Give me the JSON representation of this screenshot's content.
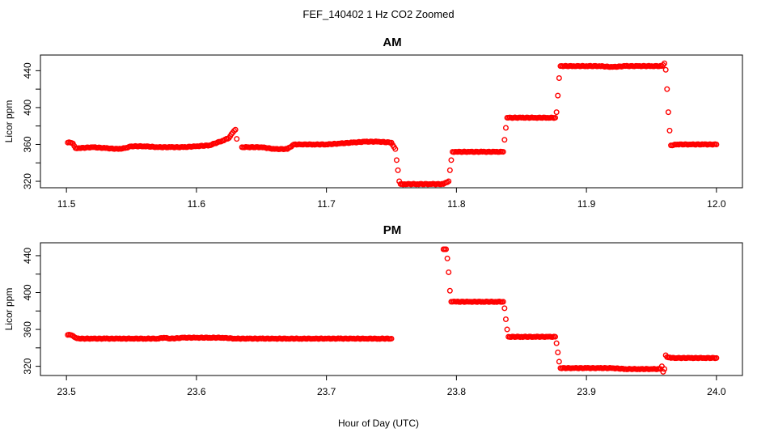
{
  "figure": {
    "title": "FEF_140402  1 Hz CO2 Zoomed",
    "xlabel": "Hour of Day (UTC)"
  },
  "colors": {
    "points": "#ff0000",
    "axes": "#000000",
    "background": "#ffffff"
  },
  "chart_data": [
    {
      "type": "scatter",
      "title": "AM",
      "xlabel": "Hour of Day (UTC)",
      "ylabel": "Licor ppm",
      "xlim": [
        11.48,
        12.02
      ],
      "ylim": [
        313,
        457
      ],
      "xticks": [
        "11.5",
        "11.6",
        "11.7",
        "11.8",
        "11.9",
        "12.0"
      ],
      "yticks": [
        "320",
        "360",
        "400",
        "440"
      ],
      "marker": "open-circle",
      "series": [
        {
          "x": [
            11.501,
            11.503,
            11.505,
            11.507,
            11.51,
            11.52,
            11.53,
            11.54,
            11.545,
            11.55,
            11.56,
            11.57,
            11.58,
            11.59,
            11.6,
            11.61,
            11.62,
            11.625,
            11.628,
            11.63,
            11.631,
            11.635,
            11.64,
            11.65,
            11.66,
            11.67,
            11.675,
            11.68,
            11.69,
            11.7,
            11.71,
            11.72,
            11.73,
            11.74,
            11.75,
            11.753,
            11.754,
            11.755,
            11.756,
            11.757,
            11.76,
            11.77,
            11.78,
            11.79,
            11.794,
            11.795,
            11.796,
            11.797,
            11.8,
            11.81,
            11.82,
            11.83,
            11.836,
            11.837,
            11.838,
            11.839,
            11.84,
            11.85,
            11.86,
            11.87,
            11.876,
            11.877,
            11.878,
            11.879,
            11.88,
            11.89,
            11.9,
            11.91,
            11.92,
            11.93,
            11.94,
            11.95,
            11.958,
            11.96,
            11.961,
            11.962,
            11.963,
            11.964,
            11.965,
            11.97,
            11.98,
            11.99,
            12.0
          ],
          "y": [
            362,
            362,
            361,
            356,
            356,
            357,
            356,
            355,
            356,
            358,
            358,
            357,
            357,
            357,
            358,
            359,
            364,
            367,
            373,
            376,
            366,
            357,
            357,
            357,
            355,
            355,
            360,
            360,
            360,
            360,
            361,
            362,
            363,
            363,
            362,
            355,
            343,
            332,
            320,
            317,
            317,
            317,
            317,
            317,
            320,
            332,
            343,
            352,
            352,
            352,
            352,
            352,
            352,
            365,
            378,
            389,
            389,
            389,
            389,
            389,
            389,
            395,
            413,
            432,
            445,
            445,
            445,
            445,
            444,
            445,
            445,
            445,
            445,
            448,
            441,
            420,
            395,
            375,
            359,
            360,
            360,
            360,
            360
          ]
        }
      ]
    },
    {
      "type": "scatter",
      "title": "PM",
      "xlabel": "Hour of Day (UTC)",
      "ylabel": "Licor ppm",
      "xlim": [
        23.48,
        24.02
      ],
      "ylim": [
        310,
        454
      ],
      "xticks": [
        "23.5",
        "23.6",
        "23.7",
        "23.8",
        "23.9",
        "24.0"
      ],
      "yticks": [
        "320",
        "360",
        "400",
        "440"
      ],
      "marker": "open-circle",
      "series": [
        {
          "x": [
            23.501,
            23.503,
            23.505,
            23.507,
            23.51,
            23.52,
            23.53,
            23.54,
            23.55,
            23.56,
            23.57,
            23.575,
            23.58,
            23.59,
            23.6,
            23.61,
            23.62,
            23.63,
            23.64,
            23.65,
            23.66,
            23.67,
            23.68,
            23.69,
            23.7,
            23.71,
            23.72,
            23.73,
            23.74,
            23.75,
            23.79,
            23.791,
            23.792,
            23.793,
            23.794,
            23.795,
            23.796,
            23.797,
            23.8,
            23.81,
            23.82,
            23.83,
            23.836,
            23.837,
            23.838,
            23.839,
            23.84,
            23.85,
            23.86,
            23.87,
            23.876,
            23.877,
            23.878,
            23.879,
            23.88,
            23.89,
            23.9,
            23.91,
            23.92,
            23.93,
            23.94,
            23.95,
            23.957,
            23.958,
            23.959,
            23.96,
            23.961,
            23.962,
            23.965,
            23.97,
            23.98,
            23.99,
            24.0
          ],
          "y": [
            354,
            354,
            353,
            351,
            350,
            350,
            350,
            350,
            350,
            350,
            350,
            351,
            350,
            351,
            351,
            351,
            351,
            350,
            350,
            350,
            350,
            350,
            350,
            350,
            350,
            350,
            350,
            350,
            350,
            350,
            447,
            447,
            447,
            437,
            422,
            402,
            390,
            390,
            390,
            390,
            390,
            390,
            390,
            383,
            371,
            360,
            352,
            352,
            352,
            352,
            352,
            345,
            335,
            325,
            318,
            318,
            318,
            318,
            318,
            317,
            317,
            317,
            317,
            320,
            314,
            317,
            332,
            330,
            329,
            329,
            329,
            329,
            329
          ]
        }
      ]
    }
  ]
}
